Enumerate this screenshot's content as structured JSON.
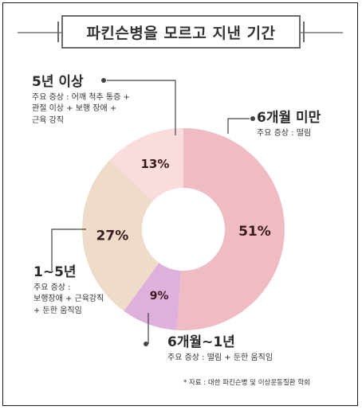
{
  "title": "파킨슨병을 모르고 지낸 기간",
  "chart_data": {
    "type": "pie",
    "categories": [
      "6개월 미만",
      "6개월~1년",
      "1~5년",
      "5년 이상"
    ],
    "values": [
      51,
      9,
      27,
      13
    ],
    "labels": [
      "51%",
      "9%",
      "27%",
      "13%"
    ],
    "colors": [
      "#f0bcc4",
      "#dfb0db",
      "#efdcc8",
      "#fbdcdc"
    ]
  },
  "annotations": {
    "under6m": {
      "head": "6개월 미만",
      "body": [
        "주요 증상 : 떨림"
      ]
    },
    "m6to1y": {
      "head": "6개월~1년",
      "body": [
        "주요 증상 : 떨림 + 둔한 움직임"
      ]
    },
    "y1to5": {
      "head": "1~5년",
      "body": [
        "주요 증상 :",
        "보행장애 + 근육강직",
        "+ 둔한 움직임"
      ]
    },
    "over5y": {
      "head": "5년 이상",
      "body": [
        "주요 증상 : 어깨 척추 통증 +",
        "관절 이상 + 보행 장애 +",
        "근육 강직"
      ]
    }
  },
  "source": "* 자료 : 대한 파킨슨병 및 이상운동질환 학회"
}
